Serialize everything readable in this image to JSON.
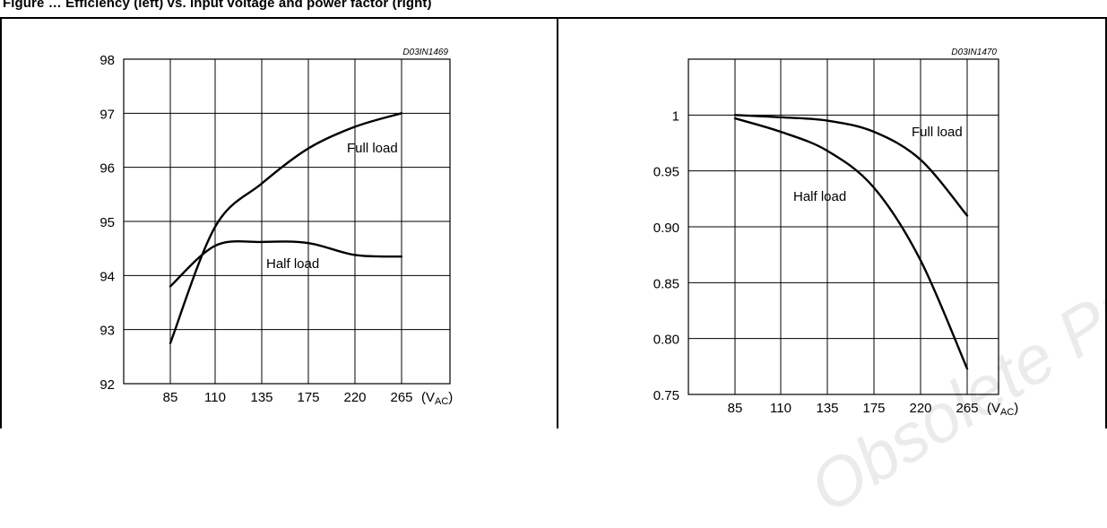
{
  "heading": "Figure … Efficiency (left) vs. input voltage and power factor (right)",
  "watermark": "Obsolete Product(s)",
  "chart_data": [
    {
      "type": "line",
      "code": "D03IN1469",
      "x_ticks": [
        "85",
        "110",
        "135",
        "175",
        "220",
        "265"
      ],
      "unit_prefix": "(V",
      "unit_sub": "AC",
      "unit_suffix": ")",
      "ylim": [
        92,
        98
      ],
      "y_ticks": [
        92,
        93,
        94,
        95,
        96,
        97,
        98
      ],
      "y_tick_labels": [
        "92",
        "93",
        "94",
        "95",
        "96",
        "97",
        "98"
      ],
      "grid": true,
      "series": [
        {
          "name": "Full load",
          "x": [
            85,
            110,
            135,
            175,
            220,
            265
          ],
          "y": [
            92.75,
            94.9,
            95.7,
            96.35,
            96.75,
            97.0
          ]
        },
        {
          "name": "Half load",
          "x": [
            85,
            110,
            135,
            175,
            220,
            265
          ],
          "y": [
            93.8,
            94.55,
            94.62,
            94.6,
            94.38,
            94.35
          ]
        }
      ]
    },
    {
      "type": "line",
      "code": "D03IN1470",
      "x_ticks": [
        "85",
        "110",
        "135",
        "175",
        "220",
        "265"
      ],
      "unit_prefix": "(V",
      "unit_sub": "AC",
      "unit_suffix": ")",
      "ylim": [
        0.75,
        1.05
      ],
      "y_ticks": [
        0.75,
        0.8,
        0.85,
        0.9,
        0.95,
        1.0
      ],
      "y_tick_labels": [
        "0.75",
        "0.80",
        "0.85",
        "0.90",
        "0.95",
        "1"
      ],
      "grid": true,
      "series": [
        {
          "name": "Full load",
          "x": [
            85,
            110,
            135,
            175,
            220,
            265
          ],
          "y": [
            1.0,
            0.998,
            0.995,
            0.985,
            0.96,
            0.91
          ]
        },
        {
          "name": "Half load",
          "x": [
            85,
            110,
            135,
            175,
            220,
            265
          ],
          "y": [
            0.997,
            0.985,
            0.968,
            0.935,
            0.87,
            0.773
          ]
        }
      ]
    }
  ]
}
